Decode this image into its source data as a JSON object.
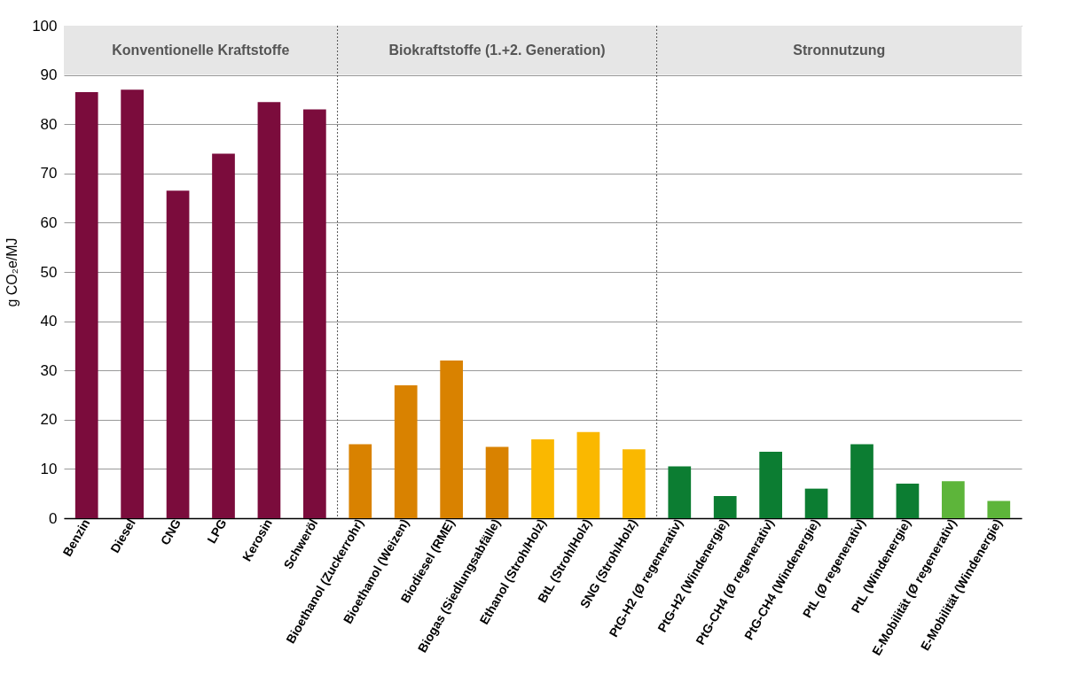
{
  "chart_data": {
    "type": "bar",
    "ylabel": "g CO₂e/MJ",
    "categories": [
      "Benzin",
      "Diesel",
      "CNG",
      "LPG",
      "Kerosin",
      "Schweröl",
      "Bioethanol (Zuckerrohr)",
      "Bioethanol (Weizen)",
      "Biodiesel (RME)",
      "Biogas (Siedlungsabfälle)",
      "Ethanol (Stroh/Holz)",
      "BtL (Stroh/Holz)",
      "SNG (Stroh/Holz)",
      "PtG-H2 (Ø regenerativ)",
      "PtG-H2 (Windenergie)",
      "PtG-CH4 (Ø regenerativ)",
      "PtG-CH4 (Windenergie)",
      "PtL (Ø regenerativ)",
      "PtL (Windenergie)",
      "E-Mobilität (Ø regenerativ)",
      "E-Mobilität (Windenergie)"
    ],
    "values": [
      86.5,
      87,
      66.5,
      74,
      84.5,
      83,
      15,
      27,
      32,
      14.5,
      16,
      17.5,
      14,
      10.5,
      4.5,
      13.5,
      6,
      15,
      7,
      7.5,
      3.5
    ],
    "colors": [
      "#7b0c3c",
      "#7b0c3c",
      "#7b0c3c",
      "#7b0c3c",
      "#7b0c3c",
      "#7b0c3c",
      "#d98200",
      "#d98200",
      "#d98200",
      "#d98200",
      "#fab800",
      "#fab800",
      "#fab800",
      "#0c7d32",
      "#0c7d32",
      "#0c7d32",
      "#0c7d32",
      "#0c7d32",
      "#0c7d32",
      "#5db53a",
      "#5db53a"
    ],
    "ylim": [
      0,
      100
    ],
    "yticks": [
      0,
      10,
      20,
      30,
      40,
      50,
      60,
      70,
      80,
      90,
      100
    ],
    "grid": "y",
    "bands": [
      {
        "axis": "x",
        "from": "Benzin",
        "to": "Schweröl",
        "label": "Konventionelle Kraftstoffe",
        "color": "#e6e6e6"
      },
      {
        "axis": "x",
        "from": "Bioethanol (Zuckerrohr)",
        "to": "SNG (Stroh/Holz)",
        "label": "Biokraftstoffe (1.+2. Generation)",
        "color": "#e6e6e6"
      },
      {
        "axis": "x",
        "from": "PtG-H2 (Ø regenerativ)",
        "to": "E-Mobilität (Windenergie)",
        "label": "Stronnutzung",
        "color": "#e6e6e6"
      }
    ]
  }
}
